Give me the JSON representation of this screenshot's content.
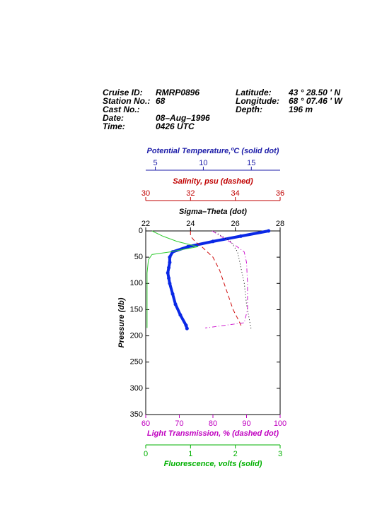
{
  "header": {
    "left": [
      {
        "label": "Cruise ID:",
        "value": "RMRP0896"
      },
      {
        "label": "Station No.:",
        "value": "68"
      },
      {
        "label": "Cast No.:",
        "value": ""
      },
      {
        "label": "Date:",
        "value": "08–Aug–1996"
      },
      {
        "label": "Time:",
        "value": "0426 UTC"
      }
    ],
    "right": [
      {
        "label": "Latitude:",
        "value": "43 ° 28.50 ' N"
      },
      {
        "label": "Longitude:",
        "value": "68 ° 07.46 ' W"
      },
      {
        "label": "Depth:",
        "value": "196 m"
      }
    ]
  },
  "chart_data": {
    "type": "profile",
    "ylabel": "Pressure (db)",
    "ylim": [
      0,
      350
    ],
    "yticks": [
      0,
      50,
      100,
      150,
      200,
      250,
      300,
      350
    ],
    "y_inverted": true,
    "axes": [
      {
        "title": "Potential Temperature,ºC (solid dot)",
        "position": "top",
        "color": "#1c1ca8",
        "line_color": "#0a28e6",
        "style": "dots",
        "xlim": [
          4,
          18
        ],
        "xticks": [
          5,
          10,
          15
        ],
        "pressure": [
          0,
          10,
          20,
          30,
          40,
          50,
          60,
          70,
          80,
          90,
          100,
          120,
          140,
          160,
          180,
          186
        ],
        "values": [
          16.8,
          13.9,
          11.0,
          8.4,
          6.8,
          6.5,
          6.5,
          6.4,
          6.3,
          6.4,
          6.5,
          6.8,
          7.1,
          7.6,
          8.2,
          8.3
        ]
      },
      {
        "title": "Salinity, psu  (dashed)",
        "position": "top",
        "color": "#c00000",
        "line_color": "#d01010",
        "style": "dashed",
        "xlim": [
          30,
          36
        ],
        "xticks": [
          30,
          32,
          34,
          36
        ],
        "pressure": [
          0,
          10,
          20,
          30,
          50,
          75,
          100,
          125,
          150,
          175,
          185
        ],
        "values": [
          32.0,
          32.0,
          32.2,
          32.5,
          33.0,
          33.3,
          33.5,
          33.7,
          33.9,
          34.2,
          34.3
        ]
      },
      {
        "title": "Sigma–Theta (dot)",
        "position": "top",
        "color": "#000000",
        "line_color": "#000000",
        "style": "dotted",
        "xlim": [
          22,
          28
        ],
        "xticks": [
          22,
          24,
          26,
          28
        ],
        "pressure": [
          0,
          10,
          20,
          40,
          60,
          100,
          140,
          186
        ],
        "values": [
          25.0,
          25.4,
          25.8,
          26.1,
          26.2,
          26.4,
          26.5,
          26.7
        ]
      },
      {
        "title": "Light Transmission, % (dashed dot)",
        "position": "bottom",
        "color": "#c000c0",
        "line_color": "#d020d0",
        "style": "dashdot",
        "xlim": [
          60,
          100
        ],
        "xticks": [
          60,
          70,
          80,
          90,
          100
        ],
        "pressure": [
          0,
          25,
          40,
          60,
          100,
          150,
          175,
          185
        ],
        "values": [
          79.8,
          86.1,
          89.3,
          90.0,
          90.3,
          90.3,
          89.3,
          77.7
        ]
      },
      {
        "title": "Fluorescence, volts (solid)",
        "position": "bottom",
        "color": "#00b000",
        "line_color": "#33cc33",
        "style": "solid",
        "xlim": [
          0,
          3
        ],
        "xticks": [
          0,
          1,
          2,
          3
        ],
        "pressure": [
          0,
          10,
          20,
          30,
          40,
          45,
          55,
          80,
          185
        ],
        "values": [
          0.14,
          0.38,
          0.7,
          1.17,
          0.54,
          0.14,
          0.06,
          0.03,
          0.03
        ]
      }
    ]
  }
}
